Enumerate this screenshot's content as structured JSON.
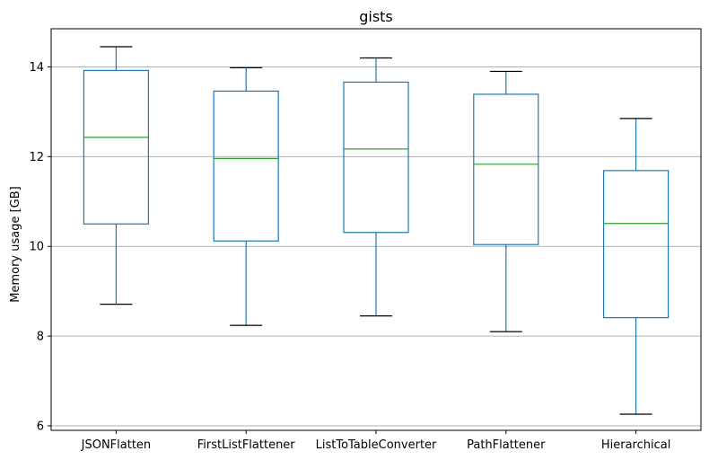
{
  "chart_data": {
    "type": "box",
    "title": "gists",
    "xlabel": "",
    "ylabel": "Memory usage [GB]",
    "ylim": [
      5.9,
      14.85
    ],
    "yticks": [
      6,
      8,
      10,
      12,
      14
    ],
    "grid": "horizontal",
    "categories": [
      "JSONFlatten",
      "FirstListFlattener",
      "ListToTableConverter",
      "PathFlattener",
      "Hierarchical"
    ],
    "boxes": [
      {
        "whisker_low": 8.71,
        "q1": 10.5,
        "median": 12.43,
        "q3": 13.92,
        "whisker_high": 14.45
      },
      {
        "whisker_low": 8.24,
        "q1": 10.12,
        "median": 11.96,
        "q3": 13.46,
        "whisker_high": 13.98
      },
      {
        "whisker_low": 8.45,
        "q1": 10.31,
        "median": 12.17,
        "q3": 13.66,
        "whisker_high": 14.2
      },
      {
        "whisker_low": 8.1,
        "q1": 10.04,
        "median": 11.83,
        "q3": 13.39,
        "whisker_high": 13.9
      },
      {
        "whisker_low": 6.26,
        "q1": 8.41,
        "median": 10.51,
        "q3": 11.69,
        "whisker_high": 12.85
      }
    ],
    "colors": {
      "box": "#1f77b4",
      "median": "#2ca02c",
      "whisker_cap": "#000000",
      "grid": "#b0b0b0"
    }
  }
}
